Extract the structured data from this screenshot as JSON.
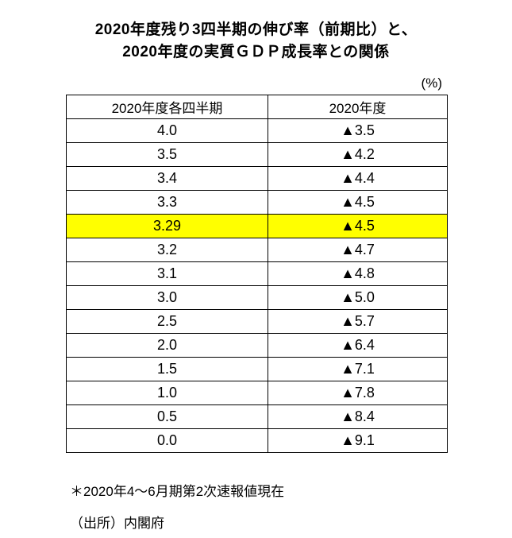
{
  "title": {
    "line1": "2020年度残り3四半期の伸び率（前期比）と、",
    "line2": "2020年度の実質ＧＤＰ成長率との関係"
  },
  "unit_label": "(%)",
  "table": {
    "headers": [
      "2020年度各四半期",
      "2020年度"
    ],
    "rows": [
      [
        "4.0",
        "▲3.5"
      ],
      [
        "3.5",
        "▲4.2"
      ],
      [
        "3.4",
        "▲4.4"
      ],
      [
        "3.3",
        "▲4.5"
      ],
      [
        "3.29",
        "▲4.5"
      ],
      [
        "3.2",
        "▲4.7"
      ],
      [
        "3.1",
        "▲4.8"
      ],
      [
        "3.0",
        "▲5.0"
      ],
      [
        "2.5",
        "▲5.7"
      ],
      [
        "2.0",
        "▲6.4"
      ],
      [
        "1.5",
        "▲7.1"
      ],
      [
        "1.0",
        "▲7.8"
      ],
      [
        "0.5",
        "▲8.4"
      ],
      [
        "0.0",
        "▲9.1"
      ]
    ],
    "highlight_row_index": 4,
    "highlight_color": "#ffff00",
    "border_color": "#000000"
  },
  "footnotes": [
    "＊2020年4～6月期第2次速報値現在",
    "（出所）内閣府"
  ]
}
